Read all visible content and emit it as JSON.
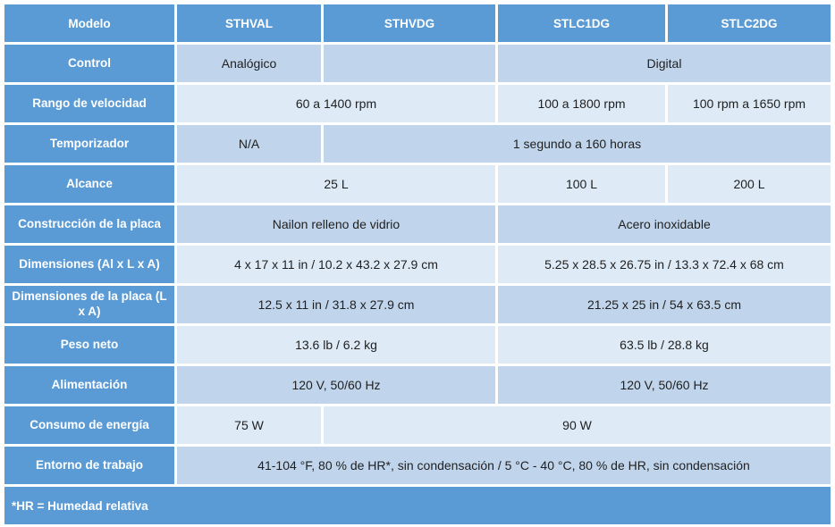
{
  "colors": {
    "header_blue": "#5b9bd5",
    "row_tint_dark": "#c0d5ec",
    "row_tint_light": "#deeaf6",
    "header_text": "#ffffff",
    "value_text": "#1f1f1f",
    "grid_gap": "#ffffff"
  },
  "table": {
    "header": [
      "Modelo",
      "STHVAL",
      "STHVDG",
      "STLC1DG",
      "STLC2DG"
    ],
    "rows": [
      {
        "label": "Control",
        "cells": [
          {
            "text": "Analógico",
            "span": 1
          },
          {
            "text": "",
            "span": 1
          },
          {
            "text": "Digital",
            "span": 2
          }
        ]
      },
      {
        "label": "Rango de velocidad",
        "cells": [
          {
            "text": "60 a 1400 rpm",
            "span": 2
          },
          {
            "text": "100 a 1800 rpm",
            "span": 1
          },
          {
            "text": "100 rpm a 1650 rpm",
            "span": 1
          }
        ]
      },
      {
        "label": "Temporizador",
        "cells": [
          {
            "text": "N/A",
            "span": 1
          },
          {
            "text": "1 segundo a 160 horas",
            "span": 3
          }
        ]
      },
      {
        "label": "Alcance",
        "cells": [
          {
            "text": "25 L",
            "span": 2
          },
          {
            "text": "100 L",
            "span": 1
          },
          {
            "text": "200 L",
            "span": 1
          }
        ]
      },
      {
        "label": "Construcción de la placa",
        "cells": [
          {
            "text": "Nailon relleno de vidrio",
            "span": 2
          },
          {
            "text": "Acero inoxidable",
            "span": 2
          }
        ]
      },
      {
        "label": "Dimensiones (Al x L x A)",
        "cells": [
          {
            "text": "4 x 17 x 11 in / 10.2 x 43.2 x 27.9 cm",
            "span": 2
          },
          {
            "text": "5.25 x 28.5 x 26.75 in / 13.3 x 72.4 x 68 cm",
            "span": 2
          }
        ]
      },
      {
        "label": "Dimensiones de la placa (L x A)",
        "cells": [
          {
            "text": "12.5 x 11 in / 31.8 x 27.9 cm",
            "span": 2
          },
          {
            "text": "21.25 x 25 in / 54 x 63.5 cm",
            "span": 2
          }
        ]
      },
      {
        "label": "Peso neto",
        "cells": [
          {
            "text": "13.6 lb / 6.2 kg",
            "span": 2
          },
          {
            "text": "63.5 lb / 28.8 kg",
            "span": 2
          }
        ]
      },
      {
        "label": "Alimentación",
        "cells": [
          {
            "text": "120 V, 50/60 Hz",
            "span": 2
          },
          {
            "text": "120 V, 50/60 Hz",
            "span": 2
          }
        ]
      },
      {
        "label": "Consumo de energía",
        "cells": [
          {
            "text": "75 W",
            "span": 1
          },
          {
            "text": "90 W",
            "span": 3
          }
        ]
      },
      {
        "label": "Entorno de trabajo",
        "cells": [
          {
            "text": "41-104 °F, 80 % de HR*, sin condensación / 5 °C - 40 °C, 80 % de HR, sin condensación",
            "span": 4
          }
        ]
      }
    ],
    "footer_note": "*HR = Humedad relativa"
  }
}
